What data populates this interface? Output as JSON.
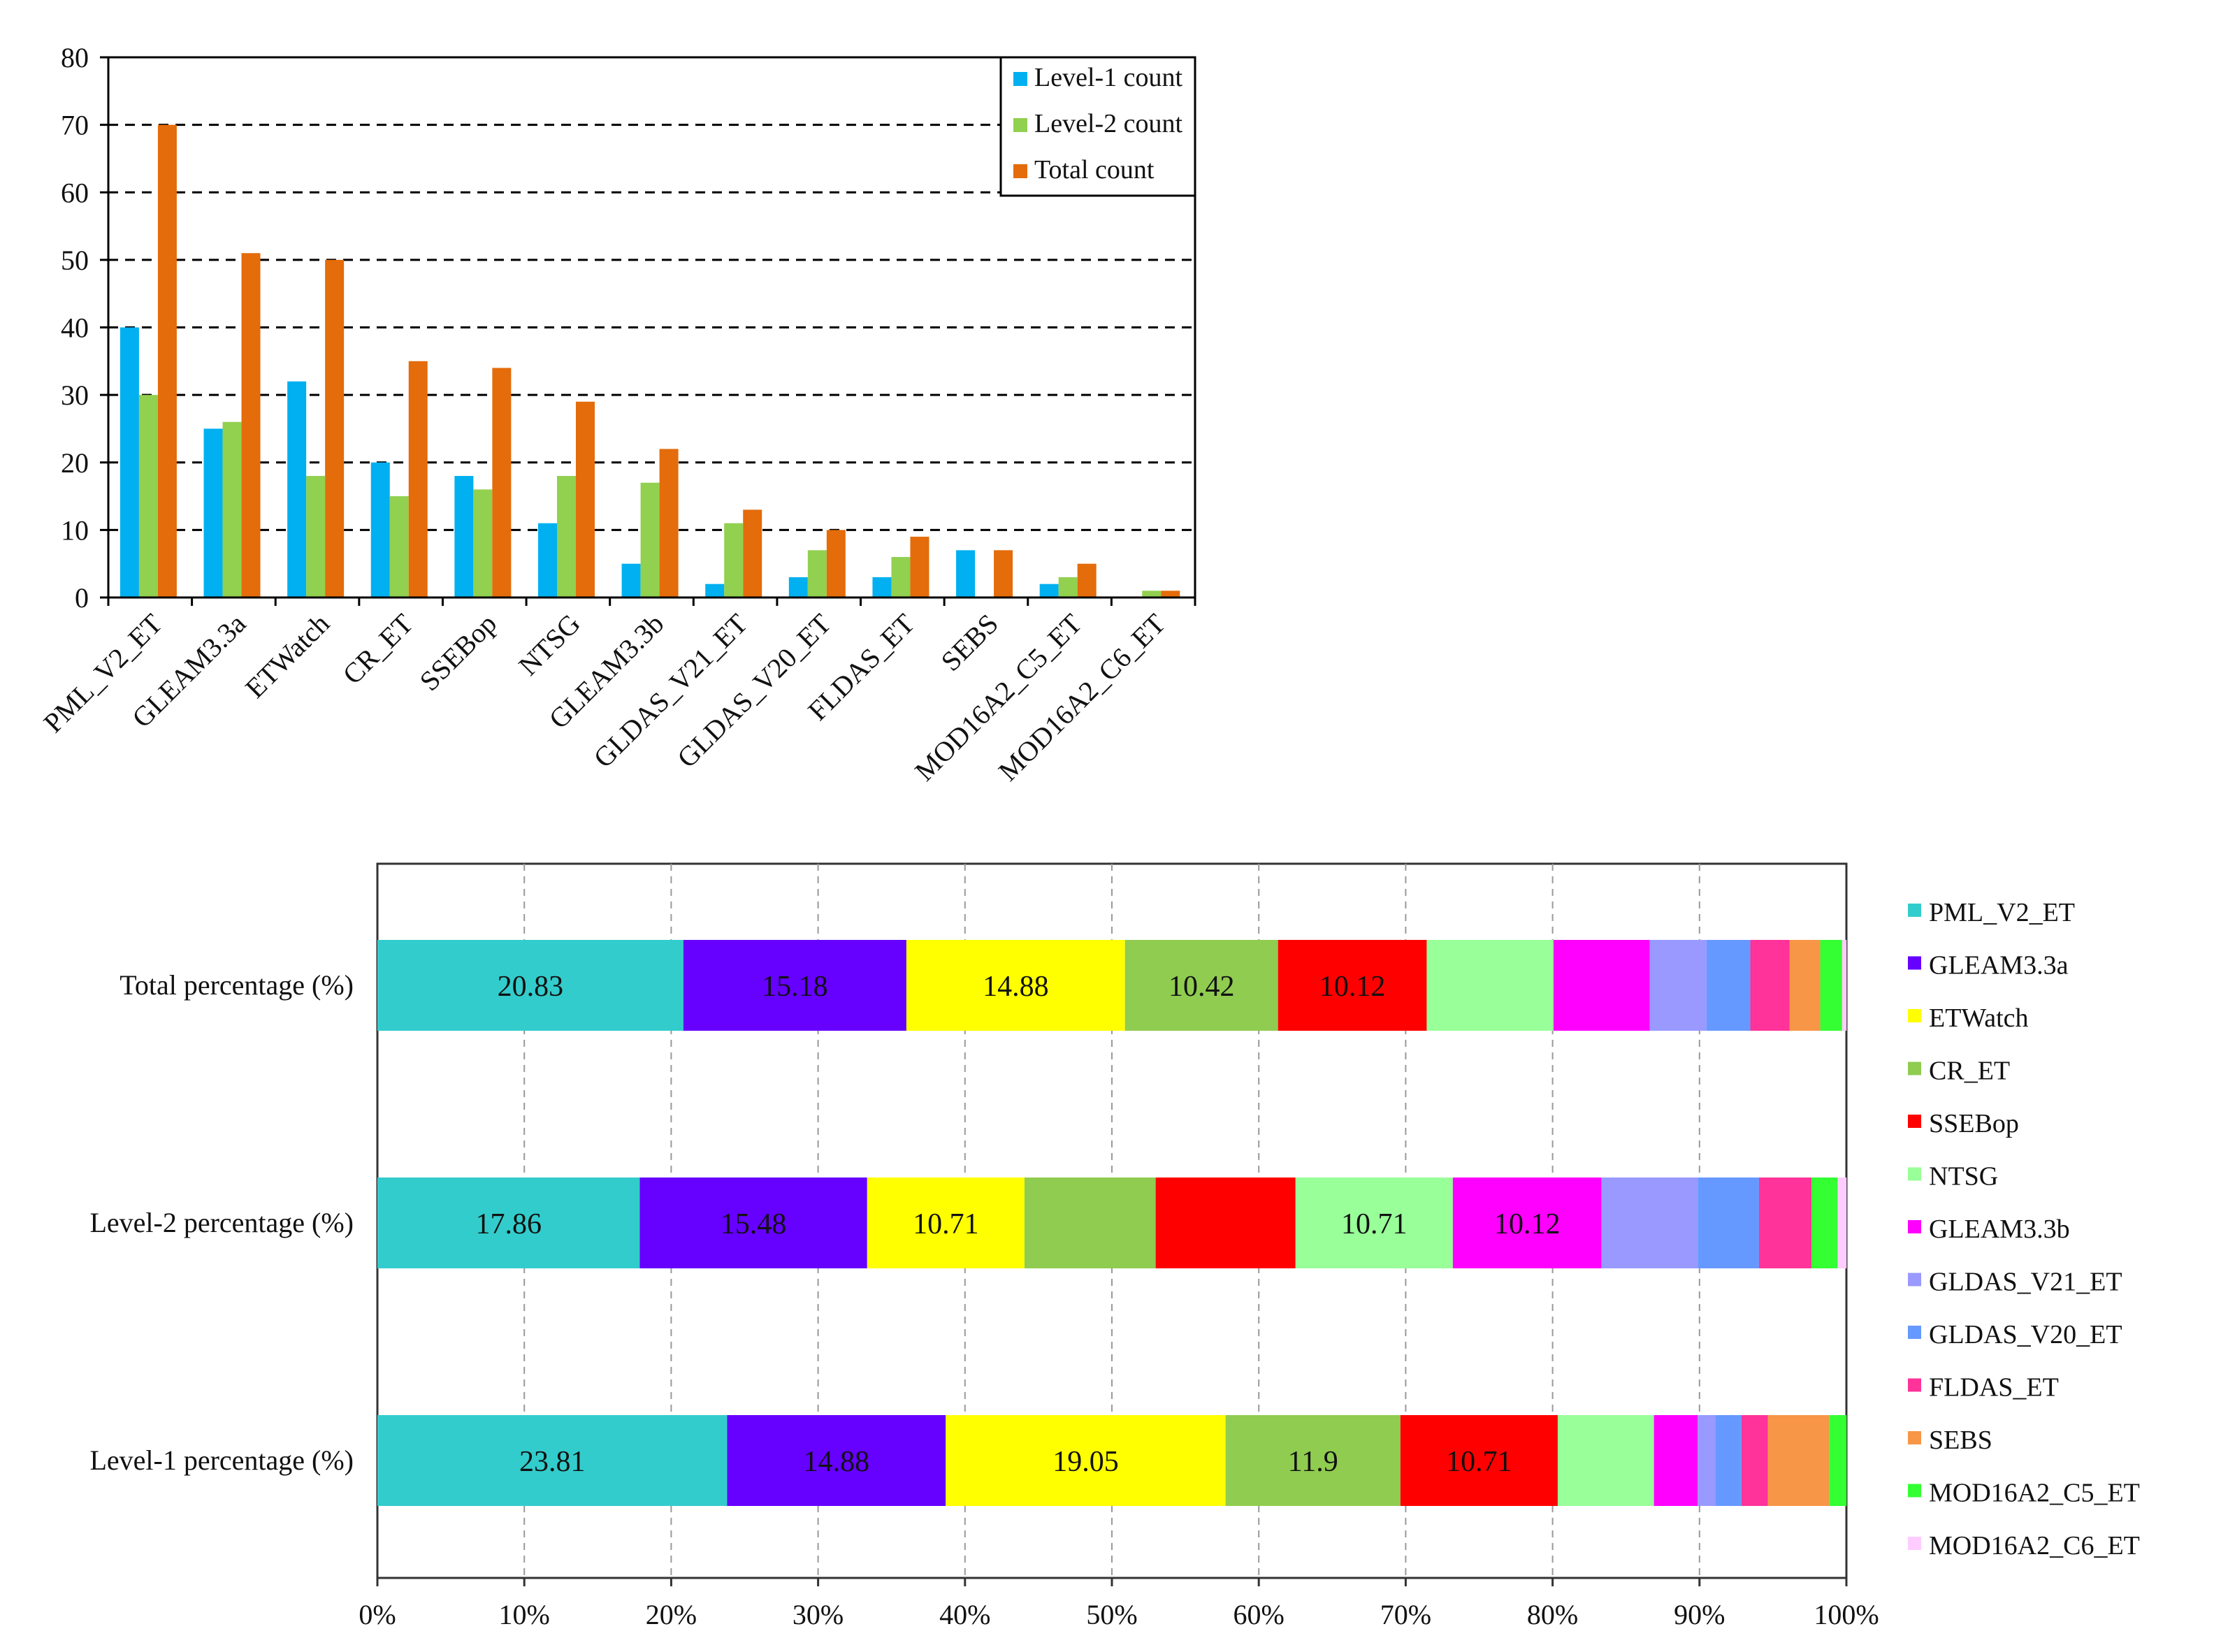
{
  "chart_data": [
    {
      "type": "bar",
      "title": "",
      "xlabel": "",
      "ylabel": "",
      "ylim": [
        0,
        80
      ],
      "yticks": [
        0,
        10,
        20,
        30,
        40,
        50,
        60,
        70,
        80
      ],
      "grid": "horizontal dashed",
      "legend_position": "top-right",
      "categories": [
        "PML_V2_ET",
        "GLEAM3.3a",
        "ETWatch",
        "CR_ET",
        "SSEBop",
        "NTSG",
        "GLEAM3.3b",
        "GLDAS_V21_ET",
        "GLDAS_V20_ET",
        "FLDAS_ET",
        "SEBS",
        "MOD16A2_C5_ET",
        "MOD16A2_C6_ET"
      ],
      "series": [
        {
          "name": "Level-1 count",
          "color": "#00b0f0",
          "values": [
            40,
            25,
            32,
            20,
            18,
            11,
            5,
            2,
            3,
            3,
            7,
            2,
            0
          ]
        },
        {
          "name": "Level-2 count",
          "color": "#92d050",
          "values": [
            30,
            26,
            18,
            15,
            16,
            18,
            17,
            11,
            7,
            6,
            0,
            3,
            1
          ]
        },
        {
          "name": "Total count",
          "color": "#e46c0a",
          "values": [
            70,
            51,
            50,
            35,
            34,
            29,
            22,
            13,
            10,
            9,
            7,
            5,
            1
          ]
        }
      ]
    },
    {
      "type": "stacked-bar-100",
      "title": "",
      "xlim": [
        0,
        100
      ],
      "xticks": [
        "0%",
        "10%",
        "20%",
        "30%",
        "40%",
        "50%",
        "60%",
        "70%",
        "80%",
        "90%",
        "100%"
      ],
      "grid": "vertical dashed",
      "legend_position": "right",
      "categories": [
        "Total percentage (%)",
        "Level-2 percentage (%)",
        "Level-1 percentage (%)"
      ],
      "series": [
        {
          "name": "PML_V2_ET",
          "color": "#33cccc",
          "values": [
            20.83,
            17.86,
            23.81
          ],
          "labels": [
            "20.83",
            "17.86",
            "23.81"
          ]
        },
        {
          "name": "GLEAM3.3a",
          "color": "#6600ff",
          "values": [
            15.18,
            15.48,
            14.88
          ],
          "labels": [
            "15.18",
            "15.48",
            "14.88"
          ]
        },
        {
          "name": "ETWatch",
          "color": "#ffff00",
          "values": [
            14.88,
            10.71,
            19.05
          ],
          "labels": [
            "14.88",
            "10.71",
            "19.05"
          ]
        },
        {
          "name": "CR_ET",
          "color": "#8fcc50",
          "values": [
            10.42,
            8.93,
            11.9
          ],
          "labels": [
            "10.42",
            "",
            "11.9"
          ]
        },
        {
          "name": "SSEBop",
          "color": "#ff0000",
          "values": [
            10.12,
            9.52,
            10.71
          ],
          "labels": [
            "10.12",
            "",
            "10.71"
          ]
        },
        {
          "name": "NTSG",
          "color": "#99ff99",
          "values": [
            8.63,
            10.71,
            6.55
          ],
          "labels": [
            "",
            "10.71",
            ""
          ]
        },
        {
          "name": "GLEAM3.3b",
          "color": "#ff00ff",
          "values": [
            6.55,
            10.12,
            2.98
          ],
          "labels": [
            "",
            "10.12",
            ""
          ]
        },
        {
          "name": "GLDAS_V21_ET",
          "color": "#9999ff",
          "values": [
            3.87,
            6.55,
            1.19
          ],
          "labels": [
            "",
            "",
            ""
          ]
        },
        {
          "name": "GLDAS_V20_ET",
          "color": "#6699ff",
          "values": [
            2.98,
            4.17,
            1.79
          ],
          "labels": [
            "",
            "",
            ""
          ]
        },
        {
          "name": "FLDAS_ET",
          "color": "#ff3399",
          "values": [
            2.68,
            3.57,
            1.79
          ],
          "labels": [
            "",
            "",
            ""
          ]
        },
        {
          "name": "SEBS",
          "color": "#f79646",
          "values": [
            2.08,
            0,
            4.17
          ],
          "labels": [
            "",
            "",
            ""
          ]
        },
        {
          "name": "MOD16A2_C5_ET",
          "color": "#33ff33",
          "values": [
            1.49,
            1.79,
            1.19
          ],
          "labels": [
            "",
            "",
            ""
          ]
        },
        {
          "name": "MOD16A2_C6_ET",
          "color": "#ffccff",
          "values": [
            0.3,
            0.6,
            0
          ],
          "labels": [
            "",
            "",
            ""
          ]
        }
      ]
    }
  ]
}
